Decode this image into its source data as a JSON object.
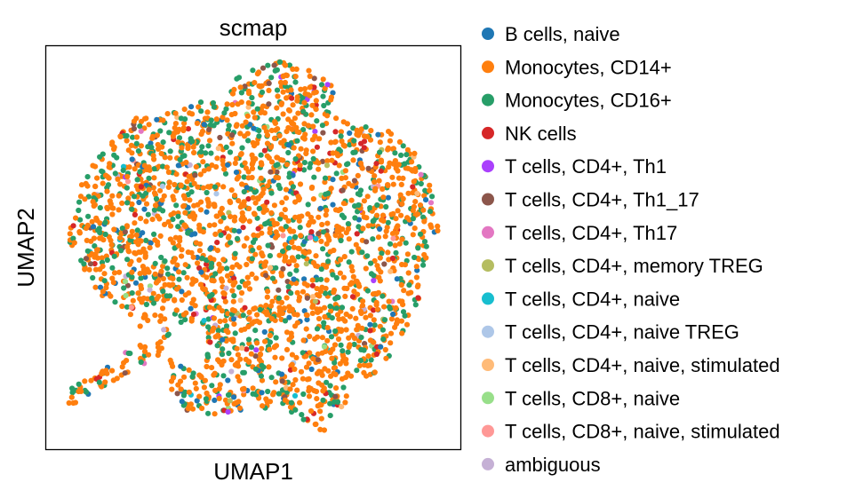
{
  "chart_data": {
    "type": "scatter",
    "title": "scmap",
    "xlabel": "UMAP1",
    "ylabel": "UMAP2",
    "grid": false,
    "legend_position": "right",
    "ticks_visible": false,
    "categories": [
      {
        "name": "B cells, naive",
        "color": "#1f77b4",
        "share": 0.045
      },
      {
        "name": "Monocytes, CD14+",
        "color": "#ff7f0e",
        "share": 0.62
      },
      {
        "name": "Monocytes, CD16+",
        "color": "#279e68",
        "share": 0.25
      },
      {
        "name": "NK cells",
        "color": "#d62728",
        "share": 0.03
      },
      {
        "name": "T cells, CD4+, Th1",
        "color": "#aa40fc",
        "share": 0.004
      },
      {
        "name": "T cells, CD4+, Th1_17",
        "color": "#8c564b",
        "share": 0.02
      },
      {
        "name": "T cells, CD4+, Th17",
        "color": "#e377c2",
        "share": 0.004
      },
      {
        "name": "T cells, CD4+, memory TREG",
        "color": "#b5bd61",
        "share": 0.004
      },
      {
        "name": "T cells, CD4+, naive",
        "color": "#17becf",
        "share": 0.003
      },
      {
        "name": "T cells, CD4+, naive TREG",
        "color": "#aec7e8",
        "share": 0.004
      },
      {
        "name": "T cells, CD4+, naive, stimulated",
        "color": "#ffbb78",
        "share": 0.003
      },
      {
        "name": "T cells, CD8+, naive",
        "color": "#98df8a",
        "share": 0.003
      },
      {
        "name": "T cells, CD8+, naive, stimulated",
        "color": "#ff9896",
        "share": 0.003
      },
      {
        "name": "ambiguous",
        "color": "#c5b0d5",
        "share": 0.007
      }
    ]
  }
}
